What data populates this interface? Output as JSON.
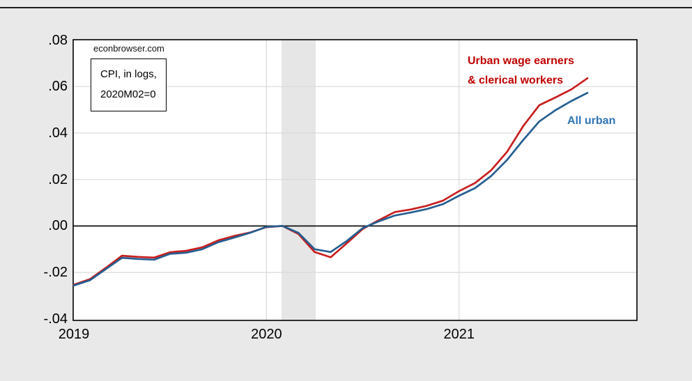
{
  "page": {
    "watermark": "econbrowser.com"
  },
  "chart_data": {
    "type": "line",
    "title": "CPI, in logs, 2020M02=0",
    "note_lines": [
      "CPI, in logs,",
      "2020M02=0"
    ],
    "x": [
      "2019-01",
      "2019-02",
      "2019-03",
      "2019-04",
      "2019-05",
      "2019-06",
      "2019-07",
      "2019-08",
      "2019-09",
      "2019-10",
      "2019-11",
      "2019-12",
      "2020-01",
      "2020-02",
      "2020-03",
      "2020-04",
      "2020-05",
      "2020-06",
      "2020-07",
      "2020-08",
      "2020-09",
      "2020-10",
      "2020-11",
      "2020-12",
      "2021-01",
      "2021-02",
      "2021-03",
      "2021-04",
      "2021-05",
      "2021-06",
      "2021-07",
      "2021-08",
      "2021-09"
    ],
    "series": [
      {
        "name": "Urban wage earners & clerical workers",
        "label_lines": [
          "Urban wage earners",
          "& clerical workers"
        ],
        "color": "#c81e1e",
        "label_color": "#c00000",
        "values": [
          -0.0253,
          -0.0229,
          -0.018,
          -0.0128,
          -0.0133,
          -0.0136,
          -0.0113,
          -0.0107,
          -0.0092,
          -0.0062,
          -0.0043,
          -0.0028,
          -0.0005,
          0.0,
          -0.0035,
          -0.0112,
          -0.0135,
          -0.0075,
          -0.0013,
          0.0025,
          0.006,
          0.0071,
          0.0087,
          0.0109,
          0.015,
          0.0185,
          0.024,
          0.032,
          0.043,
          0.052,
          0.0553,
          0.0588,
          0.0636
        ]
      },
      {
        "name": "All urban",
        "label_lines": [
          "All urban"
        ],
        "color": "#255e91",
        "label_color": "#2e74b5",
        "values": [
          -0.0256,
          -0.0234,
          -0.0185,
          -0.0137,
          -0.0142,
          -0.0145,
          -0.012,
          -0.0115,
          -0.01,
          -0.007,
          -0.005,
          -0.0029,
          -0.0004,
          0.0,
          -0.003,
          -0.01,
          -0.0112,
          -0.0065,
          -0.0009,
          0.002,
          0.0045,
          0.0058,
          0.0073,
          0.0094,
          0.013,
          0.0163,
          0.0215,
          0.0285,
          0.037,
          0.045,
          0.0498,
          0.0538,
          0.0573
        ]
      }
    ],
    "ylim": [
      -0.04,
      0.08
    ],
    "yticks": [
      {
        "value": 0.08,
        "label": ".08"
      },
      {
        "value": 0.06,
        "label": ".06"
      },
      {
        "value": 0.04,
        "label": ".04"
      },
      {
        "value": 0.02,
        "label": ".02"
      },
      {
        "value": 0.0,
        "label": ".00"
      },
      {
        "value": -0.02,
        "label": "-.02"
      },
      {
        "value": -0.04,
        "label": "-.04"
      }
    ],
    "xticks": [
      {
        "index": 0,
        "label": "2019"
      },
      {
        "index": 12,
        "label": "2020"
      },
      {
        "index": 24,
        "label": "2021"
      }
    ],
    "grid": {
      "y_values": [
        0.06,
        0.04,
        0.02,
        -0.02
      ],
      "x_tick_indices": [
        12,
        24
      ],
      "color": "#d9d9d9"
    },
    "zero_line": {
      "show": true,
      "color": "#000000"
    },
    "recession_band": {
      "from": "2020-02",
      "to": "2020-04",
      "from_index": 13,
      "to_index": 15,
      "color": "#e6e6e6"
    },
    "legend_position": "annotations-right",
    "plot_background": "#ffffff",
    "chart_background": "#e9e9e9"
  }
}
